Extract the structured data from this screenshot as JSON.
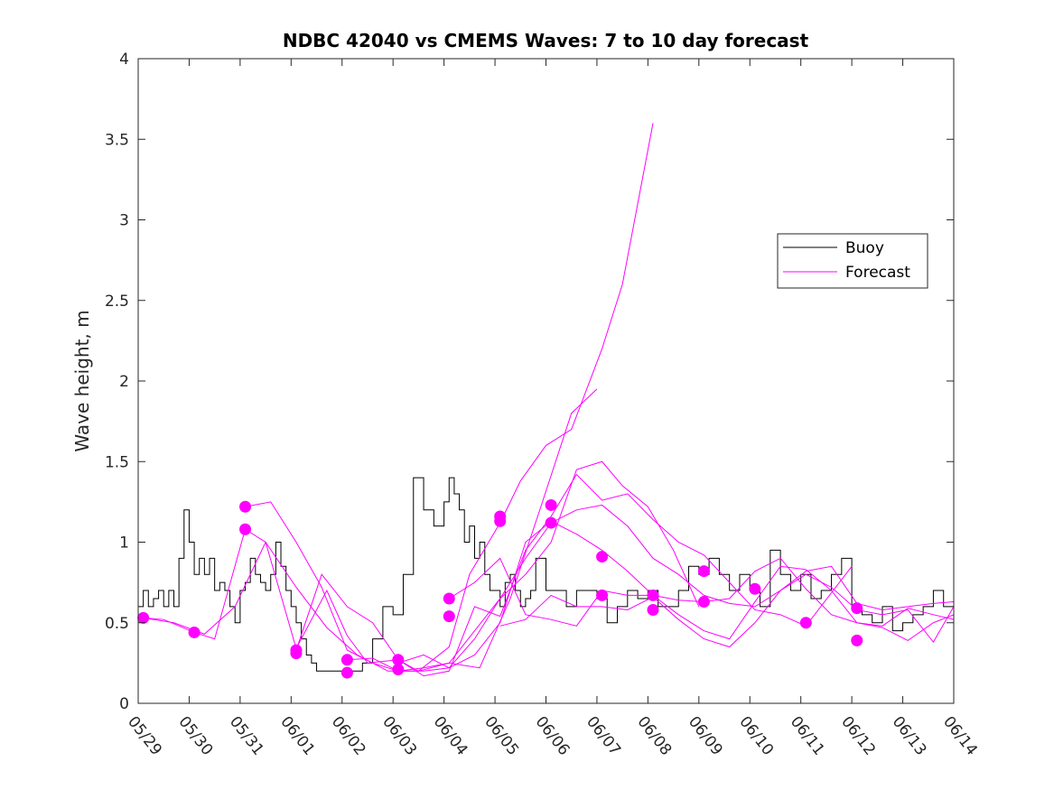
{
  "chart_data": {
    "type": "line",
    "title": "NDBC 42040 vs CMEMS Waves: 7 to 10 day forecast",
    "xlabel": "",
    "ylabel": "Wave height, m",
    "xlim": [
      0,
      16
    ],
    "ylim": [
      0,
      4
    ],
    "x_tick_labels": [
      "05/29",
      "05/30",
      "05/31",
      "06/01",
      "06/02",
      "06/03",
      "06/04",
      "06/05",
      "06/06",
      "06/07",
      "06/08",
      "06/09",
      "06/10",
      "06/11",
      "06/12",
      "06/13",
      "06/14"
    ],
    "y_ticks": [
      0,
      0.5,
      1,
      1.5,
      2,
      2.5,
      3,
      3.5,
      4
    ],
    "y_tick_labels": [
      "0",
      "0.5",
      "1",
      "1.5",
      "2",
      "2.5",
      "3",
      "3.5",
      "4"
    ],
    "grid": false,
    "legend_position": "upper-right",
    "colors": {
      "buoy": "#000000",
      "forecast": "#ff00ff"
    },
    "legend": [
      {
        "label": "Buoy",
        "series": "buoy"
      },
      {
        "label": "Forecast",
        "series": "forecast"
      }
    ],
    "series": [
      {
        "name": "Buoy",
        "key": "buoy",
        "style": "step",
        "x": [
          0,
          0.1,
          0.2,
          0.3,
          0.4,
          0.5,
          0.6,
          0.7,
          0.8,
          0.9,
          1.0,
          1.1,
          1.2,
          1.3,
          1.4,
          1.5,
          1.6,
          1.7,
          1.8,
          1.9,
          2.0,
          2.1,
          2.2,
          2.3,
          2.4,
          2.5,
          2.6,
          2.7,
          2.8,
          2.9,
          3.0,
          3.1,
          3.2,
          3.3,
          3.4,
          3.5,
          3.6,
          3.7,
          3.8,
          3.9,
          4.0,
          4.2,
          4.4,
          4.6,
          4.8,
          5.0,
          5.2,
          5.4,
          5.6,
          5.8,
          6.0,
          6.1,
          6.2,
          6.3,
          6.4,
          6.5,
          6.6,
          6.7,
          6.8,
          6.9,
          7.0,
          7.1,
          7.2,
          7.3,
          7.4,
          7.5,
          7.6,
          7.7,
          7.8,
          8.0,
          8.2,
          8.4,
          8.6,
          8.8,
          9.0,
          9.2,
          9.4,
          9.6,
          9.8,
          10.0,
          10.2,
          10.4,
          10.6,
          10.8,
          11.0,
          11.2,
          11.4,
          11.6,
          11.8,
          12.0,
          12.2,
          12.4,
          12.6,
          12.8,
          13.0,
          13.2,
          13.4,
          13.6,
          13.8,
          14.0,
          14.2,
          14.4,
          14.6,
          14.8,
          15.0,
          15.2,
          15.4,
          15.6,
          15.8,
          16.0
        ],
        "y": [
          0.6,
          0.7,
          0.6,
          0.65,
          0.7,
          0.6,
          0.7,
          0.6,
          0.9,
          1.2,
          1.0,
          0.8,
          0.9,
          0.8,
          0.9,
          0.7,
          0.75,
          0.7,
          0.6,
          0.5,
          0.7,
          0.75,
          0.9,
          0.8,
          0.75,
          0.7,
          0.8,
          1.0,
          0.85,
          0.7,
          0.6,
          0.5,
          0.4,
          0.3,
          0.25,
          0.2,
          0.2,
          0.2,
          0.2,
          0.2,
          0.2,
          0.2,
          0.25,
          0.4,
          0.6,
          0.55,
          0.8,
          1.4,
          1.2,
          1.1,
          1.25,
          1.4,
          1.3,
          1.2,
          1.0,
          1.1,
          0.9,
          1.0,
          0.8,
          0.7,
          0.7,
          0.6,
          0.75,
          0.8,
          0.7,
          0.6,
          0.65,
          0.7,
          0.9,
          0.7,
          0.7,
          0.6,
          0.7,
          0.7,
          0.65,
          0.5,
          0.6,
          0.7,
          0.65,
          0.7,
          0.6,
          0.6,
          0.7,
          0.85,
          0.8,
          0.9,
          0.8,
          0.7,
          0.8,
          0.7,
          0.6,
          0.95,
          0.8,
          0.7,
          0.8,
          0.65,
          0.7,
          0.8,
          0.9,
          0.6,
          0.55,
          0.5,
          0.6,
          0.45,
          0.5,
          0.55,
          0.6,
          0.7,
          0.6,
          0.55
        ]
      },
      {
        "name": "Forecast",
        "key": "forecast",
        "x": [
          0.1,
          0.7,
          1.3,
          1.9,
          2.5,
          3.1,
          3.7,
          4.3,
          4.9,
          5.5,
          6.1,
          6.7,
          7.3,
          7.9,
          8.5,
          9.0
        ],
        "y": [
          0.53,
          0.5,
          0.43,
          0.6,
          1.0,
          0.72,
          0.47,
          0.3,
          0.2,
          0.2,
          0.25,
          0.22,
          0.65,
          1.22,
          1.8,
          1.95
        ]
      },
      {
        "name": "Forecast",
        "key": "forecast",
        "x": [
          0.1,
          0.5,
          1.1,
          1.5,
          2.1,
          2.5,
          3.1,
          3.7,
          4.1,
          4.5,
          5.1,
          5.5,
          6.1,
          6.5,
          7.1,
          7.5,
          8.0,
          8.5,
          9.1,
          9.5,
          10.1
        ],
        "y": [
          0.53,
          0.52,
          0.44,
          0.4,
          1.08,
          1.0,
          0.34,
          0.7,
          0.42,
          0.25,
          0.27,
          0.2,
          0.35,
          0.8,
          1.12,
          1.38,
          1.6,
          1.7,
          2.2,
          2.6,
          3.6
        ]
      },
      {
        "name": "Forecast",
        "key": "forecast",
        "x": [
          2.1,
          2.6,
          3.1,
          3.6,
          4.1,
          4.6,
          5.1,
          5.6,
          6.1,
          6.6,
          7.1,
          7.6,
          8.1,
          8.6,
          9.1,
          9.5,
          10.0,
          10.5,
          11.0
        ],
        "y": [
          1.22,
          1.25,
          1.0,
          0.72,
          0.33,
          0.25,
          0.2,
          0.22,
          0.25,
          0.45,
          0.65,
          0.8,
          1.0,
          1.45,
          1.5,
          1.35,
          1.22,
          0.95,
          0.6
        ]
      },
      {
        "name": "Forecast",
        "key": "forecast",
        "x": [
          3.1,
          3.6,
          4.1,
          4.6,
          5.1,
          5.6,
          6.1,
          6.6,
          7.1,
          7.6,
          8.1,
          8.6,
          9.1,
          9.6,
          10.1,
          10.6,
          11.1,
          11.6,
          12.1,
          12.6,
          13.1,
          14.0
        ],
        "y": [
          0.33,
          0.8,
          0.6,
          0.5,
          0.27,
          0.17,
          0.2,
          0.6,
          0.54,
          0.95,
          1.16,
          1.42,
          1.26,
          1.3,
          1.14,
          1.0,
          0.92,
          0.75,
          0.58,
          0.55,
          0.48,
          0.85
        ]
      },
      {
        "name": "Forecast",
        "key": "forecast",
        "x": [
          4.1,
          4.6,
          5.1,
          5.6,
          6.1,
          6.6,
          7.1,
          7.6,
          8.1,
          8.6,
          9.1,
          9.6,
          10.1,
          10.6,
          11.1,
          11.6,
          12.1,
          12.6,
          13.1,
          13.6,
          14.1,
          14.6,
          15.1,
          15.6,
          16.0
        ],
        "y": [
          0.27,
          0.28,
          0.2,
          0.2,
          0.22,
          0.4,
          0.65,
          0.9,
          1.12,
          1.2,
          1.23,
          1.1,
          0.9,
          0.8,
          0.67,
          0.62,
          0.6,
          0.7,
          0.82,
          0.85,
          0.62,
          0.58,
          0.6,
          0.62,
          0.63
        ]
      },
      {
        "name": "Forecast",
        "key": "forecast",
        "x": [
          5.1,
          5.6,
          6.1,
          6.6,
          7.1,
          7.6,
          8.1,
          8.6,
          9.1,
          9.6,
          10.1,
          10.6,
          11.1,
          11.6,
          12.1,
          12.6,
          13.1,
          13.6,
          14.1,
          14.6,
          15.1,
          15.6,
          16.0
        ],
        "y": [
          0.25,
          0.3,
          0.22,
          0.3,
          0.5,
          1.0,
          1.13,
          1.05,
          0.95,
          0.82,
          0.67,
          0.55,
          0.45,
          0.4,
          0.63,
          0.85,
          0.83,
          0.7,
          0.5,
          0.48,
          0.59,
          0.55,
          0.52
        ]
      },
      {
        "name": "Forecast",
        "key": "forecast",
        "x": [
          6.1,
          6.6,
          7.1,
          7.6,
          8.1,
          8.6,
          9.1,
          9.6,
          10.1,
          10.6,
          11.1,
          11.6,
          12.1,
          12.6,
          13.1,
          13.6,
          14.1,
          14.6,
          15.1,
          15.6,
          16.0
        ],
        "y": [
          0.65,
          0.75,
          0.9,
          0.55,
          0.52,
          0.48,
          0.7,
          0.67,
          0.67,
          0.64,
          0.63,
          0.65,
          0.82,
          0.9,
          0.71,
          0.55,
          0.5,
          0.47,
          0.39,
          0.5,
          0.55
        ]
      },
      {
        "name": "Forecast",
        "key": "forecast",
        "x": [
          7.1,
          7.6,
          8.1,
          8.6,
          9.1,
          9.6,
          10.1,
          10.6,
          11.1,
          11.6,
          12.1,
          12.6,
          13.1,
          13.6,
          14.1,
          14.6,
          15.1,
          15.6,
          16.0
        ],
        "y": [
          0.48,
          0.52,
          0.67,
          0.6,
          0.6,
          0.58,
          0.66,
          0.52,
          0.4,
          0.35,
          0.5,
          0.7,
          0.8,
          0.72,
          0.58,
          0.55,
          0.58,
          0.38,
          0.6
        ]
      }
    ],
    "markers": [
      {
        "x": 0.1,
        "y": 0.53
      },
      {
        "x": 1.1,
        "y": 0.44
      },
      {
        "x": 2.1,
        "y": 1.22
      },
      {
        "x": 2.1,
        "y": 1.08
      },
      {
        "x": 3.1,
        "y": 0.33
      },
      {
        "x": 3.1,
        "y": 0.31
      },
      {
        "x": 4.1,
        "y": 0.27
      },
      {
        "x": 4.1,
        "y": 0.19
      },
      {
        "x": 5.1,
        "y": 0.27
      },
      {
        "x": 5.1,
        "y": 0.21
      },
      {
        "x": 6.1,
        "y": 0.65
      },
      {
        "x": 6.1,
        "y": 0.54
      },
      {
        "x": 7.1,
        "y": 1.16
      },
      {
        "x": 7.1,
        "y": 1.13
      },
      {
        "x": 8.1,
        "y": 1.23
      },
      {
        "x": 8.1,
        "y": 1.12
      },
      {
        "x": 9.1,
        "y": 0.91
      },
      {
        "x": 9.1,
        "y": 0.67
      },
      {
        "x": 10.1,
        "y": 0.67
      },
      {
        "x": 10.1,
        "y": 0.58
      },
      {
        "x": 11.1,
        "y": 0.82
      },
      {
        "x": 11.1,
        "y": 0.63
      },
      {
        "x": 12.1,
        "y": 0.71
      },
      {
        "x": 13.1,
        "y": 0.5
      },
      {
        "x": 14.1,
        "y": 0.59
      },
      {
        "x": 14.1,
        "y": 0.39
      }
    ]
  }
}
